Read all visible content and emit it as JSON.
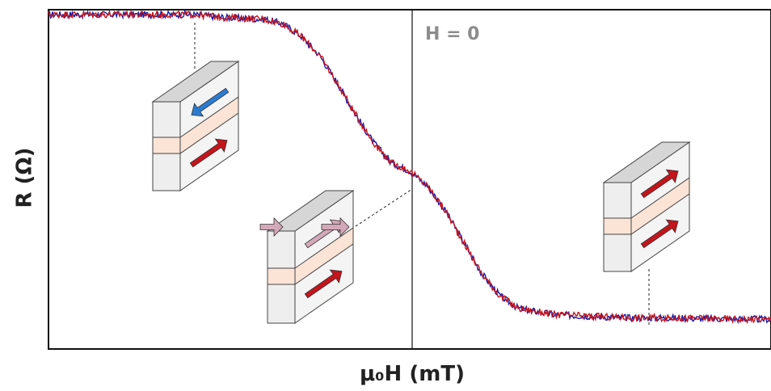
{
  "chart_data": {
    "type": "line",
    "title": "",
    "xlabel": "μ₀H (mT)",
    "ylabel": "R (Ω)",
    "annotation": "H = 0",
    "grid": false,
    "legend": "none",
    "x_ticks": [],
    "y_ticks": [],
    "series": [
      {
        "color": "#1a1aa6",
        "x": [
          -10,
          -9,
          -8,
          -7,
          -6,
          -5,
          -4,
          -3.5,
          -3,
          -2.5,
          -2,
          -1.5,
          -1,
          -0.5,
          0,
          0.5,
          1,
          1.5,
          2,
          2.5,
          3,
          4,
          5,
          6,
          7,
          8,
          9,
          10
        ],
        "values": [
          1.0,
          1.0,
          1.0,
          1.0,
          1.0,
          0.99,
          0.985,
          0.97,
          0.93,
          0.87,
          0.78,
          0.68,
          0.59,
          0.525,
          0.5,
          0.45,
          0.37,
          0.27,
          0.17,
          0.1,
          0.06,
          0.04,
          0.035,
          0.03,
          0.03,
          0.028,
          0.026,
          0.025
        ]
      },
      {
        "color": "#c4141c",
        "x": [
          -10,
          -9,
          -8,
          -7,
          -6,
          -5,
          -4,
          -3.5,
          -3,
          -2.5,
          -2,
          -1.5,
          -1,
          -0.5,
          0,
          0.5,
          1,
          1.5,
          2,
          2.5,
          3,
          4,
          5,
          6,
          7,
          8,
          9,
          10
        ],
        "values": [
          1.0,
          1.0,
          1.0,
          1.0,
          1.0,
          0.99,
          0.985,
          0.97,
          0.93,
          0.87,
          0.78,
          0.68,
          0.59,
          0.525,
          0.5,
          0.45,
          0.37,
          0.27,
          0.17,
          0.1,
          0.06,
          0.04,
          0.035,
          0.03,
          0.03,
          0.028,
          0.026,
          0.025
        ]
      }
    ],
    "xlim": [
      -10,
      10
    ],
    "ylim": [
      0,
      1
    ],
    "insets": [
      {
        "name": "antiparallel",
        "top_arrow": "left",
        "bottom_arrow": "right",
        "top_color": "#2b7bd0",
        "bottom_color": "#c4141c"
      },
      {
        "name": "intermediate",
        "top_arrow": "right",
        "bottom_arrow": "right",
        "top_color": "#d4a8b8",
        "bottom_color": "#c4141c"
      },
      {
        "name": "parallel",
        "top_arrow": "right",
        "bottom_arrow": "right",
        "top_color": "#c4141c",
        "bottom_color": "#c4141c"
      }
    ]
  }
}
